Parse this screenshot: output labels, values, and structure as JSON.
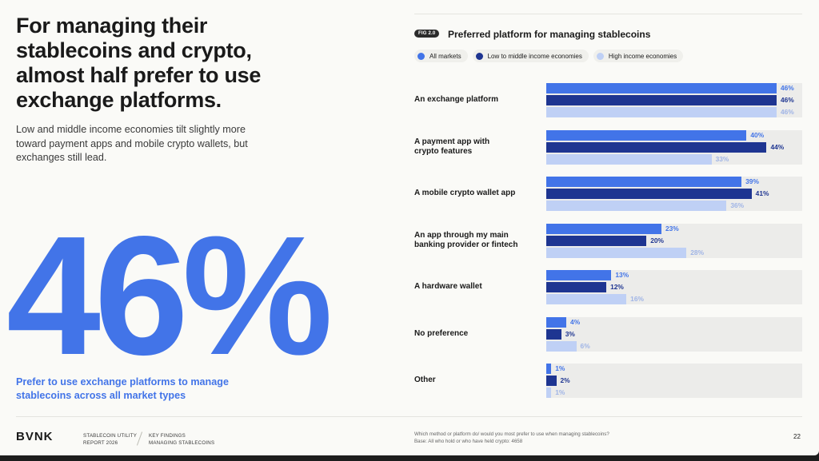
{
  "headline": "For managing their stablecoins and crypto, almost half prefer to use exchange platforms.",
  "subtext": "Low and middle income economies tilt slightly more toward payment apps and mobile crypto wallets, but exchanges still lead.",
  "big_stat": "46%",
  "stat_caption": "Prefer to use exchange platforms to manage stablecoins across all market types",
  "footer": {
    "logo": "BVNK",
    "report_line1": "STABLECOIN UTILITY",
    "report_line2": "REPORT 2026",
    "section_line1": "KEY FINDINGS",
    "section_line2": "MANAGING STABLECOINS",
    "footnote_line1": "Which method or platform do/ would you most prefer to use when managing stablecoins?",
    "footnote_line2": "Base: All who hold or who have held crypto: 4658",
    "page_number": "22"
  },
  "colors": {
    "all_markets": "#4274e8",
    "low_middle": "#1e3591",
    "high": "#bfd0f5",
    "high_label": "#9fb4e6"
  },
  "chart_data": {
    "type": "bar",
    "orientation": "horizontal",
    "fig_label": "FIG 2.0",
    "title": "Preferred platform for managing stablecoins",
    "xlim": [
      0,
      100
    ],
    "legend_position": "top-left",
    "categories": [
      "An exchange platform",
      "A payment app with\ncrypto features",
      "A mobile crypto wallet app",
      "An app through my main\nbanking provider or fintech",
      "A hardware wallet",
      "No preference",
      "Other"
    ],
    "series": [
      {
        "name": "All markets",
        "values": [
          46,
          40,
          39,
          23,
          13,
          4,
          1
        ]
      },
      {
        "name": "Low to middle income economies",
        "values": [
          46,
          44,
          41,
          20,
          12,
          3,
          2
        ]
      },
      {
        "name": "High income economies",
        "values": [
          46,
          33,
          36,
          28,
          16,
          6,
          1
        ]
      }
    ]
  }
}
